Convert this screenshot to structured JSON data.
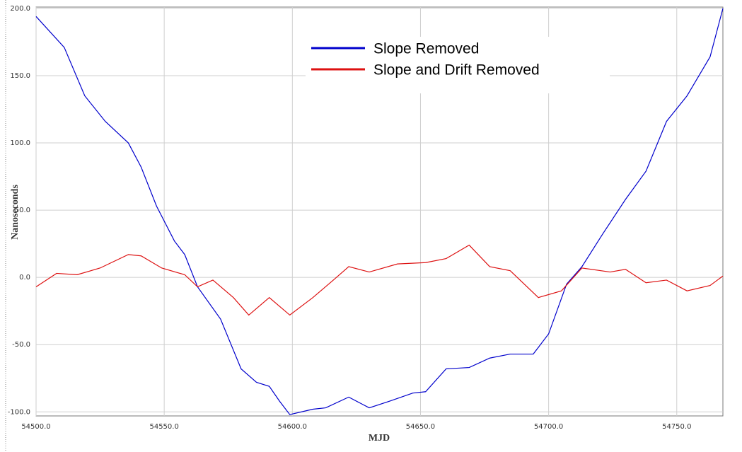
{
  "chart_data": {
    "type": "line",
    "xlabel": "MJD",
    "ylabel": "Nanoseconds",
    "xlim": [
      54500,
      54768
    ],
    "ylim": [
      -103,
      201
    ],
    "xticks": [
      {
        "value": 54500,
        "label": "54500.0"
      },
      {
        "value": 54550,
        "label": "54550.0"
      },
      {
        "value": 54600,
        "label": "54600.0"
      },
      {
        "value": 54650,
        "label": "54650.0"
      },
      {
        "value": 54700,
        "label": "54700.0"
      },
      {
        "value": 54750,
        "label": "54750.0"
      }
    ],
    "yticks": [
      {
        "value": -100,
        "label": "-100.0"
      },
      {
        "value": -50,
        "label": "-50.0"
      },
      {
        "value": 0,
        "label": "0.0"
      },
      {
        "value": 50,
        "label": "50.0"
      },
      {
        "value": 100,
        "label": "100.0"
      },
      {
        "value": 150,
        "label": "150.0"
      },
      {
        "value": 200,
        "label": "200.0"
      }
    ],
    "grid": true,
    "legend": "top",
    "series": [
      {
        "name": "Slope Removed",
        "color": "#0000cc",
        "x": [
          54500,
          54511,
          54519,
          54527,
          54536,
          54541,
          54547,
          54554,
          54558,
          54563,
          54572,
          54580,
          54586,
          54591,
          54595,
          54599,
          54608,
          54613,
          54622,
          54630,
          54638,
          54647,
          54652,
          54660,
          54669,
          54677,
          54685,
          54694,
          54700,
          54707,
          54713,
          54721,
          54730,
          54738,
          54746,
          54754,
          54763,
          54768
        ],
        "values": [
          194,
          171,
          135,
          116,
          100,
          82,
          53,
          27,
          17,
          -7,
          -31,
          -68,
          -78,
          -81,
          -92,
          -102,
          -98,
          -97,
          -89,
          -97,
          -92,
          -86,
          -85,
          -68,
          -67,
          -60,
          -57,
          -57,
          -42,
          -5,
          8,
          32,
          58,
          79,
          116,
          135,
          164,
          200
        ]
      },
      {
        "name": "Slope and Drift Removed",
        "color": "#dd1111",
        "x": [
          54500,
          54508,
          54516,
          54525,
          54536,
          54541,
          54549,
          54558,
          54563,
          54569,
          54577,
          54583,
          54591,
          54599,
          54608,
          54616,
          54622,
          54630,
          54641,
          54652,
          54660,
          54669,
          54677,
          54685,
          54696,
          54705,
          54713,
          54724,
          54730,
          54738,
          54746,
          54754,
          54763,
          54768
        ],
        "values": [
          -7,
          3,
          2,
          7,
          17,
          16,
          7,
          2,
          -7,
          -2,
          -15,
          -28,
          -15,
          -28,
          -15,
          -2,
          8,
          4,
          10,
          11,
          14,
          24,
          8,
          5,
          -15,
          -10,
          7,
          4,
          6,
          -4,
          -2,
          -10,
          -6,
          1
        ]
      }
    ]
  }
}
